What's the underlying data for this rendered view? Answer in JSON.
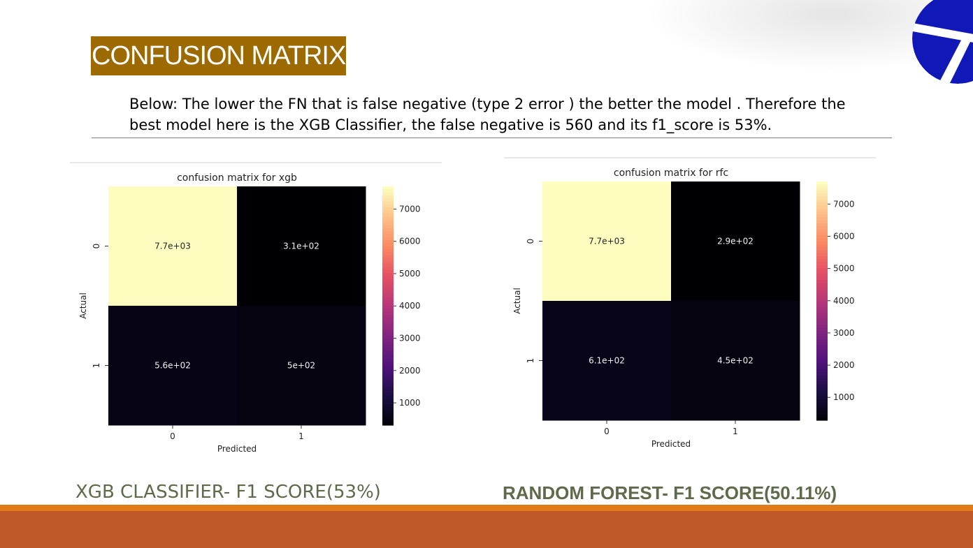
{
  "slide": {
    "title": "CONFUSION MATRIX",
    "description": "Below: The lower the FN that is false negative (type 2 error ) the better the model . Therefore the best model here is the XGB Classifier, the false negative is 560 and its f1_score is 53%.",
    "caption_left": "XGB CLASSIFIER- F1 SCORE(53%)",
    "caption_right": "RANDOM FOREST- F1 SCORE(50.11%)",
    "colors": {
      "title_bg": "#9c6a00",
      "caption": "#5e6a4a",
      "footer": "#c0592a",
      "footer_line": "#e07b1a",
      "logo": "#1018b8"
    }
  },
  "chart_data": [
    {
      "type": "heatmap",
      "title": "confusion matrix for xgb",
      "xlabel": "Predicted",
      "ylabel": "Actual",
      "x_categories": [
        "0",
        "1"
      ],
      "y_categories": [
        "0",
        "1"
      ],
      "values": [
        [
          7700,
          310
        ],
        [
          560,
          500
        ]
      ],
      "annotations": [
        [
          "7.7e+03",
          "3.1e+02"
        ],
        [
          "5.6e+02",
          "5e+02"
        ]
      ],
      "colormap": "magma",
      "colorbar_range": [
        310,
        7700
      ],
      "colorbar_ticks": [
        1000,
        2000,
        3000,
        4000,
        5000,
        6000,
        7000
      ]
    },
    {
      "type": "heatmap",
      "title": "confusion matrix for rfc",
      "xlabel": "Predicted",
      "ylabel": "Actual",
      "x_categories": [
        "0",
        "1"
      ],
      "y_categories": [
        "0",
        "1"
      ],
      "values": [
        [
          7700,
          290
        ],
        [
          610,
          450
        ]
      ],
      "annotations": [
        [
          "7.7e+03",
          "2.9e+02"
        ],
        [
          "6.1e+02",
          "4.5e+02"
        ]
      ],
      "colormap": "magma",
      "colorbar_range": [
        290,
        7700
      ],
      "colorbar_ticks": [
        1000,
        2000,
        3000,
        4000,
        5000,
        6000,
        7000
      ]
    }
  ]
}
